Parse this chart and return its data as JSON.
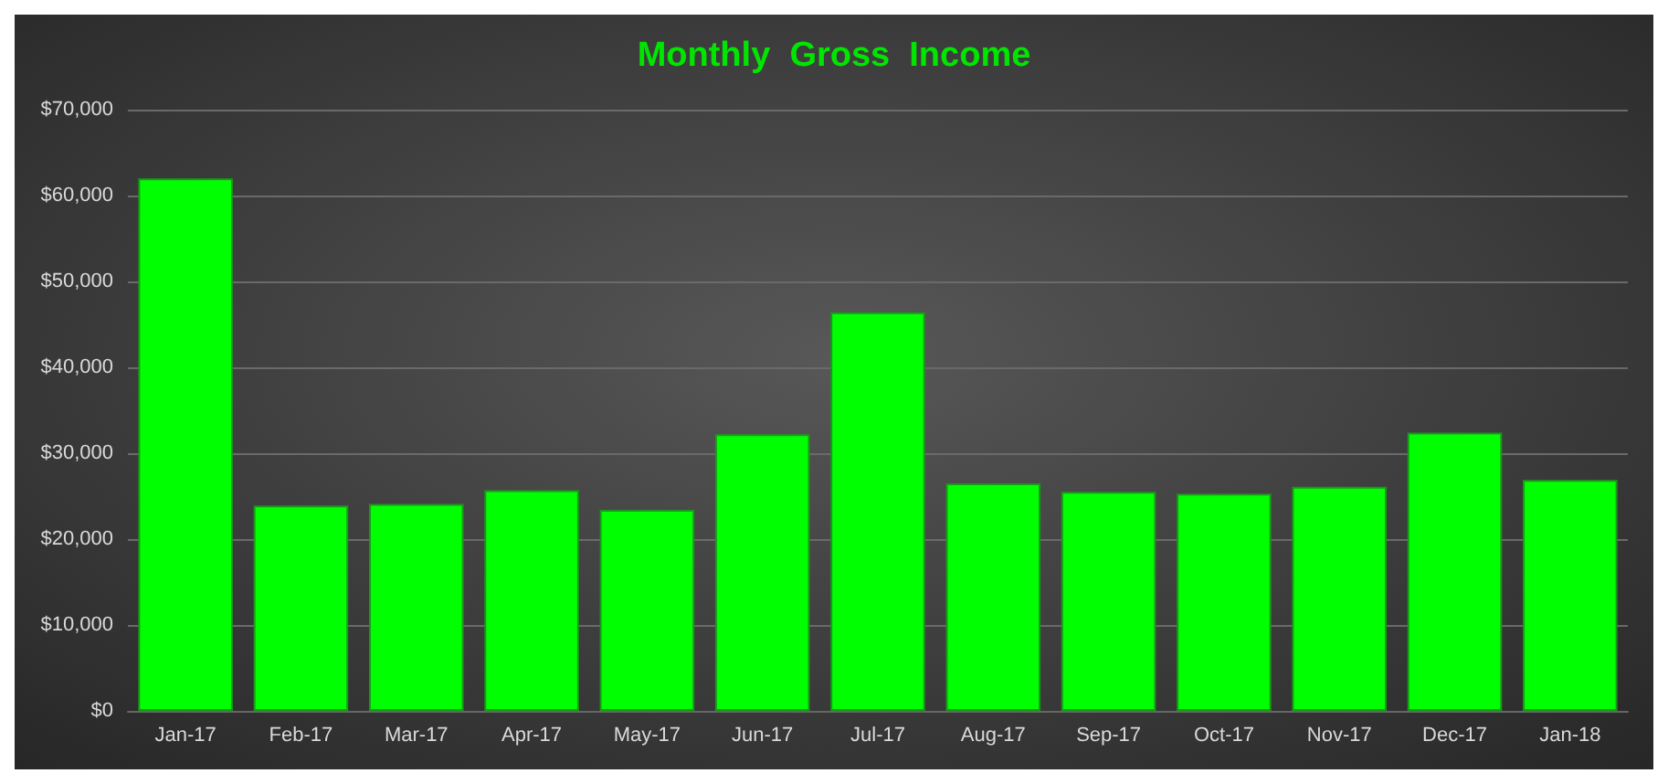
{
  "chart_data": {
    "type": "bar",
    "title": "Monthly  Gross  Income",
    "categories": [
      "Jan-17",
      "Feb-17",
      "Mar-17",
      "Apr-17",
      "May-17",
      "Jun-17",
      "Jul-17",
      "Aug-17",
      "Sep-17",
      "Oct-17",
      "Nov-17",
      "Dec-17",
      "Jan-18"
    ],
    "values": [
      62000,
      23900,
      24100,
      25700,
      23400,
      32200,
      46400,
      26500,
      25500,
      25300,
      26100,
      32400,
      26900
    ],
    "color": "#00ff00",
    "ylim": [
      0,
      70000
    ],
    "yticks": [
      {
        "value": 0,
        "label": "$0"
      },
      {
        "value": 10000,
        "label": "$10,000"
      },
      {
        "value": 20000,
        "label": "$20,000"
      },
      {
        "value": 30000,
        "label": "$30,000"
      },
      {
        "value": 40000,
        "label": "$40,000"
      },
      {
        "value": 50000,
        "label": "$50,000"
      },
      {
        "value": 60000,
        "label": "$60,000"
      },
      {
        "value": 70000,
        "label": "$70,000"
      }
    ],
    "grid": "y"
  }
}
